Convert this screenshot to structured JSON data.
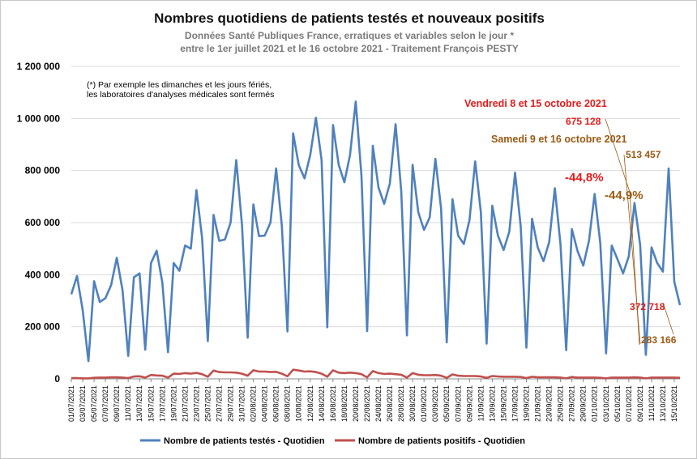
{
  "chart_data": {
    "type": "line",
    "title": "Nombres quotidiens de patients testés et nouveaux positifs",
    "subtitle_line1": "Données Santé Publiques France, erratiques et variables selon le jour *",
    "subtitle_line2": "entre le 1er juillet 2021 et le 16 octobre 2021 - Traitement François PESTY",
    "footnote_line1": "(*) Par exemple les dimanches et les jours fériés,",
    "footnote_line2": "les laboratoires d'analyses médicales sont fermés",
    "ylim": [
      0,
      1200000
    ],
    "y_ticks": [
      "0",
      "200 000",
      "400 000",
      "600 000",
      "800 000",
      "1 000 000",
      "1 200 000"
    ],
    "grid": true,
    "legend_position": "bottom",
    "x_tick_labels": [
      "01/07/2021",
      "03/07/2021",
      "05/07/2021",
      "07/07/2021",
      "09/07/2021",
      "11/07/2021",
      "13/07/2021",
      "15/07/2021",
      "17/07/2021",
      "19/07/2021",
      "21/07/2021",
      "23/07/2021",
      "25/07/2021",
      "27/07/2021",
      "29/07/2021",
      "31/07/2021",
      "02/08/2021",
      "04/08/2021",
      "06/08/2021",
      "08/08/2021",
      "10/08/2021",
      "12/08/2021",
      "14/08/2021",
      "16/08/2021",
      "18/08/2021",
      "20/08/2021",
      "22/08/2021",
      "24/08/2021",
      "26/08/2021",
      "28/08/2021",
      "30/08/2021",
      "01/09/2021",
      "03/09/2021",
      "05/09/2021",
      "07/09/2021",
      "09/09/2021",
      "11/09/2021",
      "13/09/2021",
      "15/09/2021",
      "17/09/2021",
      "19/09/2021",
      "21/09/2021",
      "23/09/2021",
      "25/09/2021",
      "27/09/2021",
      "29/09/2021",
      "01/10/2021",
      "03/10/2021",
      "05/10/2021",
      "07/10/2021",
      "09/10/2021",
      "11/10/2021",
      "13/10/2021",
      "15/10/2021"
    ],
    "series": [
      {
        "name": "Nombre de patients testés - Quotidien",
        "color": "#4f81bd",
        "values": [
          325000,
          395000,
          265000,
          68000,
          375000,
          295000,
          310000,
          360000,
          465000,
          340000,
          88000,
          390000,
          405000,
          112000,
          445000,
          492000,
          370000,
          102000,
          445000,
          415000,
          512000,
          500000,
          725000,
          540000,
          145000,
          630000,
          530000,
          535000,
          600000,
          840000,
          590000,
          158000,
          670000,
          548000,
          550000,
          600000,
          808000,
          590000,
          182000,
          943000,
          820000,
          770000,
          860000,
          1003000,
          840000,
          198000,
          975000,
          822000,
          755000,
          860000,
          1065000,
          780000,
          183000,
          895000,
          735000,
          672000,
          750000,
          978000,
          720000,
          167000,
          822000,
          640000,
          572000,
          620000,
          845000,
          655000,
          140000,
          690000,
          550000,
          518000,
          610000,
          835000,
          640000,
          135000,
          665000,
          550000,
          495000,
          565000,
          792000,
          585000,
          120000,
          615000,
          505000,
          452000,
          525000,
          732000,
          515000,
          110000,
          575000,
          490000,
          435000,
          530000,
          710000,
          520000,
          98000,
          512000,
          460000,
          405000,
          470000,
          675128,
          513457,
          92000,
          505000,
          445000,
          412000,
          808000,
          372718,
          283166
        ],
        "highlight_labels": {
          "fri_oct8": "675 128",
          "sat_oct9": "513 457",
          "fri_oct15": "372 718",
          "sat_oct16": "283 166"
        }
      },
      {
        "name": "Nombre de patients positifs - Quotidien",
        "color": "#c0504d",
        "values": [
          3000,
          3000,
          2000,
          2000,
          4000,
          5000,
          5000,
          6000,
          6000,
          5000,
          3000,
          9000,
          10000,
          5000,
          15000,
          13000,
          12000,
          5000,
          20000,
          19000,
          22000,
          20000,
          23000,
          18000,
          8000,
          32000,
          26000,
          25000,
          25000,
          24000,
          20000,
          12000,
          33000,
          28000,
          28000,
          26000,
          27000,
          20000,
          10000,
          35000,
          32000,
          28000,
          29000,
          26000,
          20000,
          8000,
          33000,
          24000,
          22000,
          24000,
          22000,
          18000,
          6000,
          30000,
          22000,
          19000,
          20000,
          18000,
          16000,
          5000,
          22000,
          16000,
          14000,
          14000,
          15000,
          12000,
          4000,
          17000,
          12000,
          11000,
          11000,
          11000,
          9000,
          4000,
          11000,
          9000,
          8000,
          8000,
          8000,
          7000,
          3000,
          8000,
          6000,
          6000,
          6000,
          6000,
          5000,
          2000,
          7000,
          5000,
          5000,
          5000,
          5000,
          4000,
          2000,
          5000,
          5000,
          5000,
          5000,
          6000,
          5000,
          2000,
          5000,
          5000,
          5000,
          5000,
          5000,
          4000
        ]
      }
    ],
    "annotations": {
      "fri_title": "Vendredi 8 et 15 octobre 2021",
      "sat_title": "Samedi 9 et 16 octobre 2021",
      "fri_pct": "-44,8%",
      "sat_pct": "-44,9%"
    },
    "colors": {
      "fri": "#e31b1b",
      "sat": "#9a5a12"
    }
  }
}
